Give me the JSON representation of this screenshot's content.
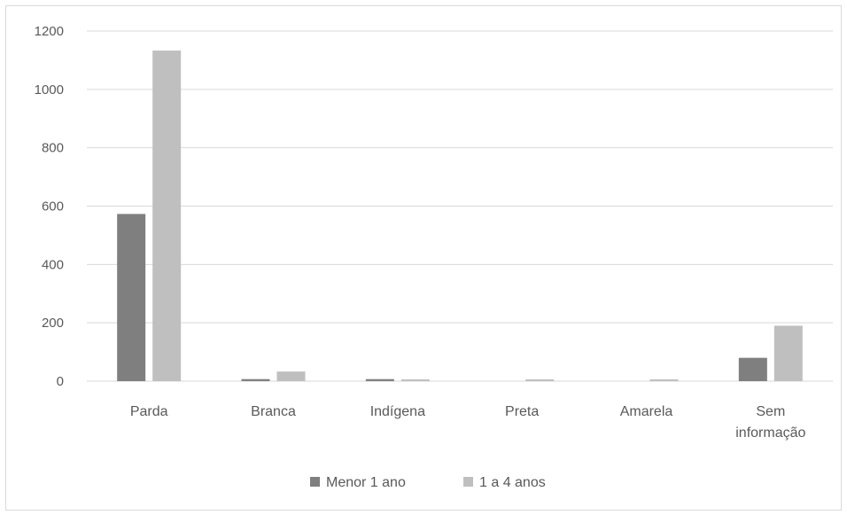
{
  "chart_data": {
    "type": "bar",
    "title": "",
    "xlabel": "",
    "ylabel": "",
    "ylim": [
      0,
      1200
    ],
    "yticks": [
      0,
      200,
      400,
      600,
      800,
      1000,
      1200
    ],
    "grid": true,
    "legend_position": "bottom",
    "categories": [
      [
        "Parda"
      ],
      [
        "Branca"
      ],
      [
        "Indígena"
      ],
      [
        "Preta"
      ],
      [
        "Amarela"
      ],
      [
        "Sem",
        "informação"
      ]
    ],
    "series": [
      {
        "name": "Menor 1 ano",
        "color": "#7f7f7f",
        "values": [
          573,
          7,
          7,
          0,
          0,
          80
        ]
      },
      {
        "name": "1 a 4 anos",
        "color": "#bfbfbf",
        "values": [
          1133,
          33,
          6,
          6,
          6,
          190
        ]
      }
    ],
    "colors": {
      "grid": "#d9d9d9",
      "axis": "#d9d9d9",
      "text": "#595959"
    }
  }
}
